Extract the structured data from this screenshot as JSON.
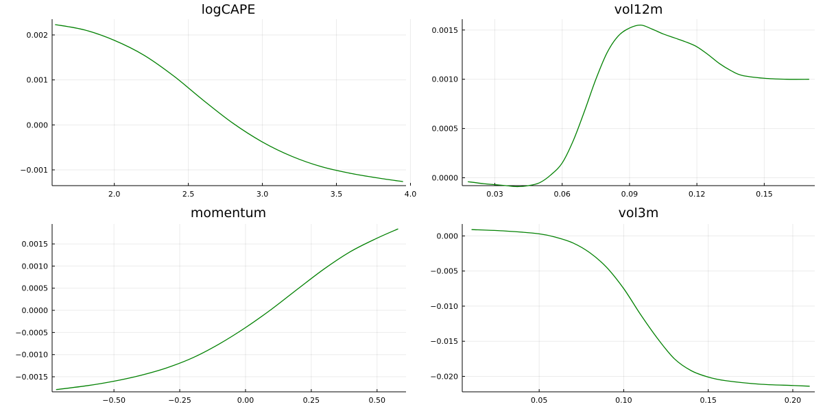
{
  "figure": {
    "background": "#ffffff",
    "line_color": "#008000"
  },
  "chart_data": [
    {
      "type": "line",
      "title": "logCAPE",
      "xlim": [
        1.58,
        3.97
      ],
      "ylim": [
        -0.00135,
        0.00235
      ],
      "xticks": [
        2.0,
        2.5,
        3.0,
        3.5,
        4.0
      ],
      "xtick_labels": [
        "2.0",
        "2.5",
        "3.0",
        "3.5",
        "4.0"
      ],
      "yticks": [
        -0.001,
        0.0,
        0.001,
        0.002
      ],
      "ytick_labels": [
        "−0.001",
        "0.000",
        "0.001",
        "0.002"
      ],
      "grid": true,
      "series": [
        {
          "x": [
            1.6,
            1.8,
            2.0,
            2.2,
            2.4,
            2.6,
            2.8,
            3.0,
            3.2,
            3.4,
            3.6,
            3.8,
            3.95
          ],
          "y": [
            0.00223,
            0.00211,
            0.00188,
            0.00155,
            0.00109,
            0.00055,
            4e-05,
            -0.00038,
            -0.0007,
            -0.00093,
            -0.00108,
            -0.00119,
            -0.00126
          ]
        }
      ]
    },
    {
      "type": "line",
      "title": "vol12m",
      "xlim": [
        0.0155,
        0.1725
      ],
      "ylim": [
        -8e-05,
        0.00161
      ],
      "xticks": [
        0.03,
        0.06,
        0.09,
        0.12,
        0.15
      ],
      "xtick_labels": [
        "0.03",
        "0.06",
        "0.09",
        "0.12",
        "0.15"
      ],
      "yticks": [
        0.0,
        0.0005,
        0.001,
        0.0015
      ],
      "ytick_labels": [
        "0.0000",
        "0.0005",
        "0.0010",
        "0.0015"
      ],
      "grid": true,
      "series": [
        {
          "x": [
            0.018,
            0.025,
            0.03,
            0.035,
            0.04,
            0.045,
            0.05,
            0.055,
            0.06,
            0.065,
            0.07,
            0.075,
            0.08,
            0.085,
            0.09,
            0.095,
            0.1,
            0.105,
            0.11,
            0.115,
            0.12,
            0.125,
            0.13,
            0.135,
            0.14,
            0.15,
            0.16,
            0.17
          ],
          "y": [
            -4e-05,
            -6e-05,
            -7e-05,
            -8e-05,
            -9e-05,
            -8e-05,
            -5e-05,
            3e-05,
            0.00015,
            0.00038,
            0.00068,
            0.001,
            0.00127,
            0.00144,
            0.00152,
            0.00155,
            0.00151,
            0.00146,
            0.00142,
            0.00138,
            0.00133,
            0.00125,
            0.00116,
            0.00109,
            0.00104,
            0.00101,
            0.001,
            0.001
          ]
        }
      ]
    },
    {
      "type": "line",
      "title": "momentum",
      "xlim": [
        -0.735,
        0.61
      ],
      "ylim": [
        -0.00184,
        0.00195
      ],
      "xticks": [
        -0.5,
        -0.25,
        0.0,
        0.25,
        0.5
      ],
      "xtick_labels": [
        "−0.50",
        "−0.25",
        "0.00",
        "0.25",
        "0.50"
      ],
      "yticks": [
        -0.0015,
        -0.001,
        -0.0005,
        0.0,
        0.0005,
        0.001,
        0.0015
      ],
      "ytick_labels": [
        "−0.0015",
        "−0.0010",
        "−0.0005",
        "0.0000",
        "0.0005",
        "0.0010",
        "0.0015"
      ],
      "grid": true,
      "series": [
        {
          "x": [
            -0.72,
            -0.6,
            -0.5,
            -0.4,
            -0.3,
            -0.2,
            -0.1,
            0.0,
            0.1,
            0.2,
            0.3,
            0.4,
            0.5,
            0.58
          ],
          "y": [
            -0.00179,
            -0.0017,
            -0.0016,
            -0.00147,
            -0.0013,
            -0.00107,
            -0.00076,
            -0.00039,
            3e-05,
            0.00049,
            0.00094,
            0.00133,
            0.00163,
            0.00184
          ]
        }
      ]
    },
    {
      "type": "line",
      "title": "vol3m",
      "xlim": [
        0.0045,
        0.213
      ],
      "ylim": [
        -0.0222,
        0.0017
      ],
      "xticks": [
        0.05,
        0.1,
        0.15,
        0.2
      ],
      "xtick_labels": [
        "0.05",
        "0.10",
        "0.15",
        "0.20"
      ],
      "yticks": [
        -0.02,
        -0.015,
        -0.01,
        -0.005,
        0.0
      ],
      "ytick_labels": [
        "−0.020",
        "−0.015",
        "−0.010",
        "−0.005",
        "0.000"
      ],
      "grid": true,
      "series": [
        {
          "x": [
            0.01,
            0.03,
            0.05,
            0.06,
            0.07,
            0.08,
            0.09,
            0.1,
            0.11,
            0.12,
            0.13,
            0.14,
            0.15,
            0.16,
            0.18,
            0.2,
            0.21
          ],
          "y": [
            0.0009,
            0.0007,
            0.0003,
            -0.0002,
            -0.001,
            -0.0024,
            -0.0045,
            -0.0075,
            -0.0112,
            -0.0146,
            -0.0175,
            -0.0192,
            -0.0201,
            -0.0206,
            -0.0211,
            -0.0213,
            -0.0214
          ]
        }
      ]
    }
  ]
}
